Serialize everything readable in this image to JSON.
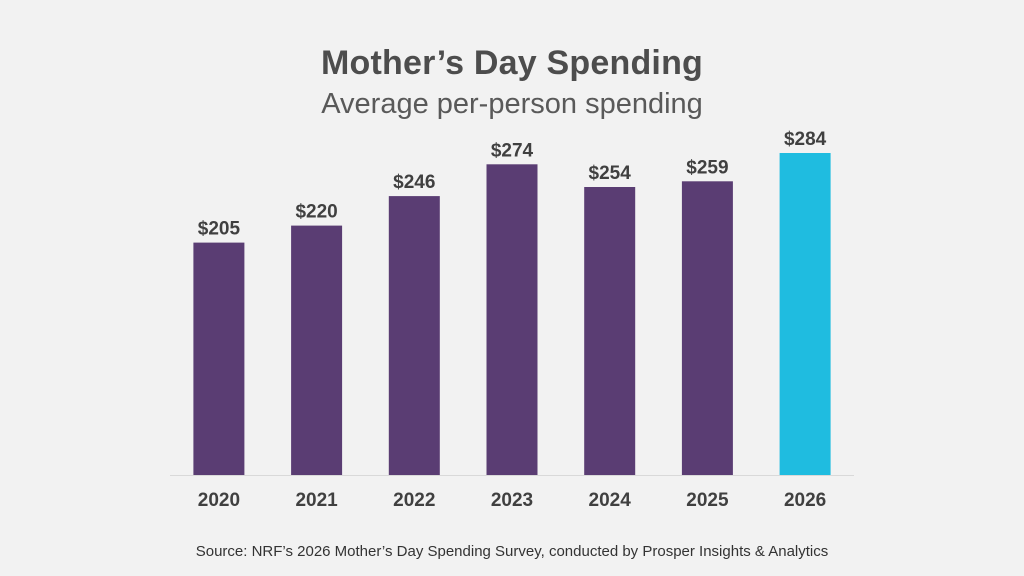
{
  "chart_data": {
    "type": "bar",
    "title": "Mother’s Day Spending",
    "subtitle": "Average per-person spending",
    "categories": [
      "2020",
      "2021",
      "2022",
      "2023",
      "2024",
      "2025",
      "2026"
    ],
    "values": [
      205,
      220,
      246,
      274,
      254,
      259,
      284
    ],
    "value_labels": [
      "$205",
      "$220",
      "$246",
      "$274",
      "$254",
      "$259",
      "$284"
    ],
    "ylim": [
      0,
      284
    ],
    "xlabel": "",
    "ylabel": "",
    "grid": false,
    "bar_color": "#5a3d73",
    "highlight_color": "#1fbce0",
    "highlight_category": "2026",
    "source": "Source: NRF’s 2026 Mother’s Day Spending Survey, conducted by Prosper Insights & Analytics"
  }
}
